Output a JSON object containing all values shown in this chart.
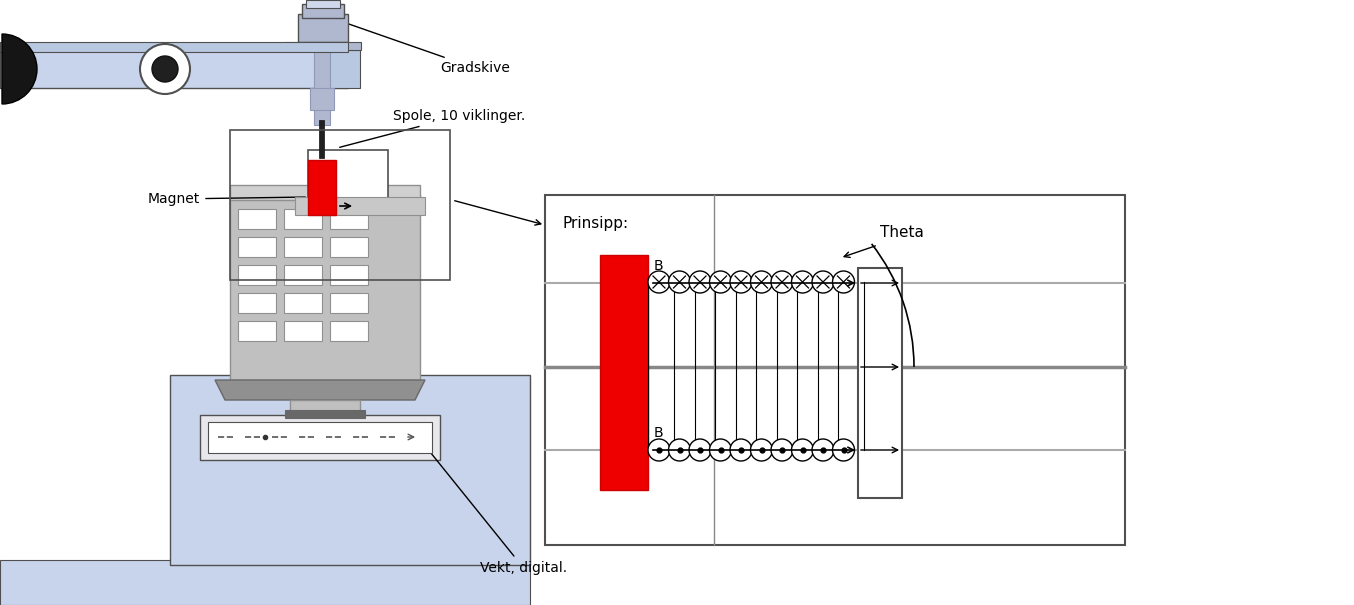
{
  "bg_color": "#ffffff",
  "light_blue": "#c8d4ec",
  "light_blue2": "#b8c8e0",
  "steel_color": "#c0c0c0",
  "steel_dark": "#909090",
  "steel_darker": "#686868",
  "red_magnet": "#ee0000",
  "box_border": "#505050",
  "text_color": "#000000",
  "rod_color": "#b0b8d0",
  "label_gradskive": "Gradskive",
  "label_spole": "Spole, 10 viklinger.",
  "label_magnet": "Magnet",
  "label_vekt": "Vekt, digital.",
  "label_prinsipp": "Prinsipp:",
  "label_theta": "Theta",
  "label_B": "B"
}
